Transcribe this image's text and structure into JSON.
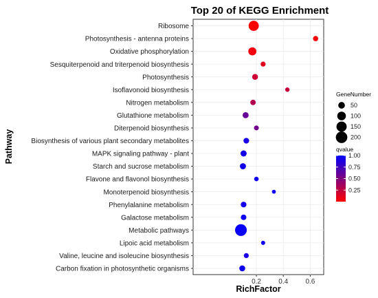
{
  "chart_data": {
    "type": "scatter",
    "title": "Top 20 of KEGG Enrichment",
    "xlabel": "RichFactor",
    "ylabel": "Pathway",
    "xlim": [
      -0.27,
      0.7
    ],
    "xticks": [
      {
        "value": 0.2,
        "label": "0.2"
      },
      {
        "value": 0.4,
        "label": "0.4"
      },
      {
        "value": 0.6,
        "label": "0.6"
      }
    ],
    "grid": true,
    "categories": [
      "Ribosome",
      "Photosynthesis - antenna proteins",
      "Oxidative phosphorylation",
      "Sesquiterpenoid and triterpenoid biosynthesis",
      "Photosynthesis",
      "Isoflavonoid biosynthesis",
      "Nitrogen metabolism",
      "Glutathione metabolism",
      "Diterpenoid biosynthesis",
      "Biosynthesis of various plant secondary metabolites",
      "MAPK signaling pathway - plant",
      "Starch and sucrose metabolism",
      "Flavone and flavonol biosynthesis",
      "Monoterpenoid biosynthesis",
      "Phenylalanine metabolism",
      "Galactose metabolism",
      "Metabolic pathways",
      "Lipoic acid metabolism",
      "Valine, leucine and isoleucine biosynthesis",
      "Carbon fixation in photosynthetic organisms"
    ],
    "points": [
      {
        "pathway": "Ribosome",
        "rich_factor": 0.18,
        "gene_number": 150,
        "qvalue": 0.0
      },
      {
        "pathway": "Photosynthesis - antenna proteins",
        "rich_factor": 0.64,
        "gene_number": 25,
        "qvalue": 0.02
      },
      {
        "pathway": "Oxidative phosphorylation",
        "rich_factor": 0.17,
        "gene_number": 85,
        "qvalue": 0.05
      },
      {
        "pathway": "Sesquiterpenoid and triterpenoid biosynthesis",
        "rich_factor": 0.25,
        "gene_number": 22,
        "qvalue": 0.12
      },
      {
        "pathway": "Photosynthesis",
        "rich_factor": 0.19,
        "gene_number": 35,
        "qvalue": 0.2
      },
      {
        "pathway": "Isoflavonoid biosynthesis",
        "rich_factor": 0.43,
        "gene_number": 15,
        "qvalue": 0.22
      },
      {
        "pathway": "Nitrogen metabolism",
        "rich_factor": 0.175,
        "gene_number": 28,
        "qvalue": 0.3
      },
      {
        "pathway": "Glutathione metabolism",
        "rich_factor": 0.12,
        "gene_number": 38,
        "qvalue": 0.6
      },
      {
        "pathway": "Diterpenoid biosynthesis",
        "rich_factor": 0.2,
        "gene_number": 20,
        "qvalue": 0.55
      },
      {
        "pathway": "Biosynthesis of various plant secondary metabolites",
        "rich_factor": 0.125,
        "gene_number": 32,
        "qvalue": 0.9
      },
      {
        "pathway": "MAPK signaling pathway - plant",
        "rich_factor": 0.105,
        "gene_number": 40,
        "qvalue": 0.92
      },
      {
        "pathway": "Starch and sucrose metabolism",
        "rich_factor": 0.1,
        "gene_number": 40,
        "qvalue": 0.93
      },
      {
        "pathway": "Flavone and flavonol biosynthesis",
        "rich_factor": 0.2,
        "gene_number": 16,
        "qvalue": 0.93
      },
      {
        "pathway": "Monoterpenoid biosynthesis",
        "rich_factor": 0.33,
        "gene_number": 10,
        "qvalue": 0.95
      },
      {
        "pathway": "Phenylalanine metabolism",
        "rich_factor": 0.105,
        "gene_number": 32,
        "qvalue": 0.92
      },
      {
        "pathway": "Galactose metabolism",
        "rich_factor": 0.105,
        "gene_number": 30,
        "qvalue": 0.95
      },
      {
        "pathway": "Metabolic pathways",
        "rich_factor": 0.085,
        "gene_number": 210,
        "qvalue": 0.97
      },
      {
        "pathway": "Lipoic acid metabolism",
        "rich_factor": 0.25,
        "gene_number": 12,
        "qvalue": 0.95
      },
      {
        "pathway": "Valine, leucine and isoleucine biosynthesis",
        "rich_factor": 0.125,
        "gene_number": 22,
        "qvalue": 0.9
      },
      {
        "pathway": "Carbon fixation in photosynthetic organisms",
        "rich_factor": 0.095,
        "gene_number": 36,
        "qvalue": 0.95
      }
    ],
    "size_legend": {
      "title": "GeneNumber",
      "entries": [
        {
          "value": 50,
          "label": "50"
        },
        {
          "value": 100,
          "label": "100"
        },
        {
          "value": 150,
          "label": "150"
        },
        {
          "value": 200,
          "label": "200"
        }
      ]
    },
    "color_legend": {
      "title": "qvalue",
      "range": [
        0.0,
        1.0
      ],
      "low_color": "#ff0000",
      "high_color": "#0000ff",
      "ticks": [
        {
          "value": 1.0,
          "label": "1.00"
        },
        {
          "value": 0.75,
          "label": "0.75"
        },
        {
          "value": 0.5,
          "label": "0.50"
        },
        {
          "value": 0.25,
          "label": "0.25"
        }
      ]
    },
    "legend_placement": "right",
    "panel_background": "#ffffff",
    "grid_color": "#ebebeb"
  }
}
